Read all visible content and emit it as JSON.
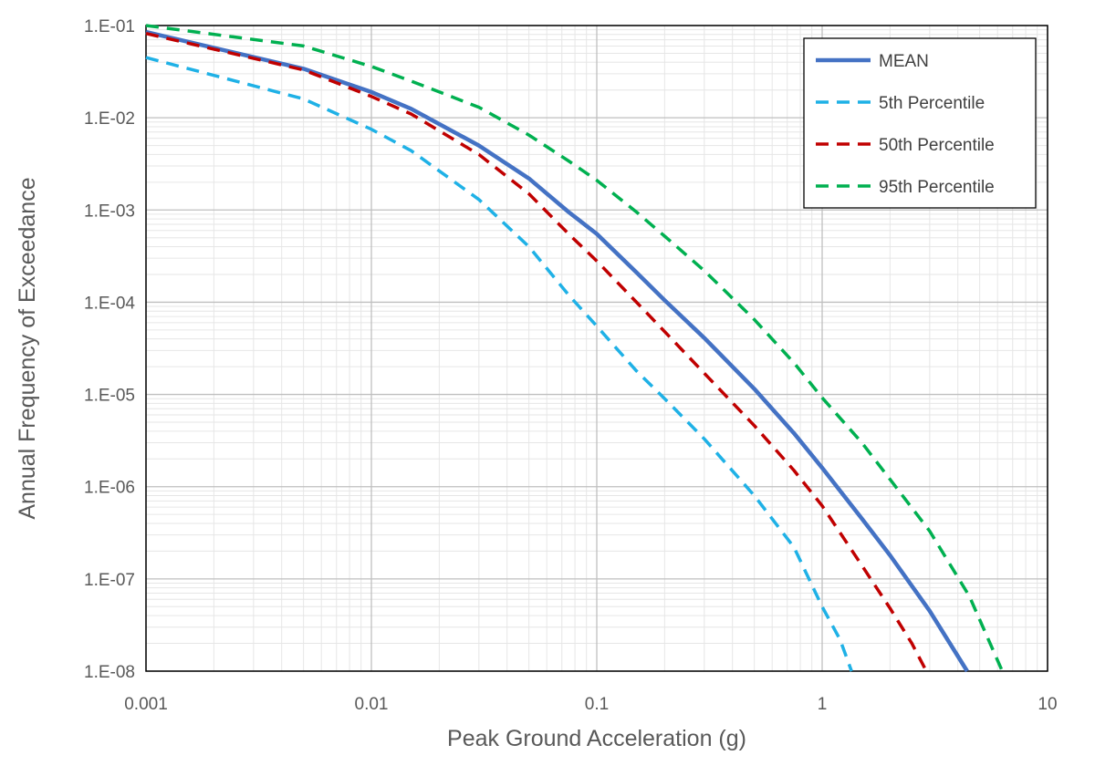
{
  "chart_data": {
    "type": "line",
    "title": "",
    "xlabel": "Peak Ground Acceleration (g)",
    "ylabel": "Annual Frequency of Exceedance",
    "xscale": "log",
    "yscale": "log",
    "xlim": [
      0.001,
      10
    ],
    "ylim": [
      1e-08,
      0.1
    ],
    "x_ticks": [
      {
        "value": 0.001,
        "label": "0.001"
      },
      {
        "value": 0.01,
        "label": "0.01"
      },
      {
        "value": 0.1,
        "label": "0.1"
      },
      {
        "value": 1,
        "label": "1"
      },
      {
        "value": 10,
        "label": "10"
      }
    ],
    "y_ticks": [
      {
        "value": 1e-08,
        "label": "1.E-08"
      },
      {
        "value": 1e-07,
        "label": "1.E-07"
      },
      {
        "value": 1e-06,
        "label": "1.E-06"
      },
      {
        "value": 1e-05,
        "label": "1.E-05"
      },
      {
        "value": 0.0001,
        "label": "1.E-04"
      },
      {
        "value": 0.001,
        "label": "1.E-03"
      },
      {
        "value": 0.01,
        "label": "1.E-02"
      },
      {
        "value": 0.1,
        "label": "1.E-01"
      }
    ],
    "grid": true,
    "minor_grid": true,
    "legend_position": "top-right",
    "series": [
      {
        "name": "MEAN",
        "color": "#4472C4",
        "style": "solid",
        "x": [
          0.001,
          0.005,
          0.01,
          0.015,
          0.03,
          0.05,
          0.075,
          0.1,
          0.15,
          0.2,
          0.3,
          0.5,
          0.75,
          1.0,
          1.5,
          2.0,
          3.0,
          4.4
        ],
        "y": [
          0.085,
          0.034,
          0.019,
          0.0125,
          0.005,
          0.0022,
          0.00095,
          0.00055,
          0.00021,
          0.000105,
          4.1e-05,
          1.15e-05,
          3.8e-06,
          1.6e-06,
          4.5e-07,
          1.8e-07,
          4.5e-08,
          1e-08
        ]
      },
      {
        "name": "5th Percentile",
        "color": "#1FB1E6",
        "style": "dashed",
        "x": [
          0.001,
          0.005,
          0.01,
          0.015,
          0.03,
          0.05,
          0.075,
          0.1,
          0.15,
          0.2,
          0.3,
          0.5,
          0.75,
          1.0,
          1.2,
          1.35
        ],
        "y": [
          0.045,
          0.016,
          0.0075,
          0.0044,
          0.0013,
          0.0004,
          0.00012,
          5.5e-05,
          1.8e-05,
          9e-06,
          3.3e-06,
          8e-07,
          2.2e-07,
          5e-08,
          2.2e-08,
          1e-08
        ]
      },
      {
        "name": "50th Percentile",
        "color": "#C00000",
        "style": "dashed",
        "x": [
          0.001,
          0.005,
          0.01,
          0.015,
          0.03,
          0.05,
          0.075,
          0.1,
          0.15,
          0.2,
          0.3,
          0.5,
          0.75,
          1.0,
          1.5,
          2.0,
          2.5,
          2.9
        ],
        "y": [
          0.082,
          0.033,
          0.017,
          0.011,
          0.004,
          0.0015,
          0.00055,
          0.00028,
          0.0001,
          4.8e-05,
          1.7e-05,
          4.6e-06,
          1.5e-06,
          6.2e-07,
          1.4e-07,
          4.8e-08,
          2e-08,
          1e-08
        ]
      },
      {
        "name": "95th Percentile",
        "color": "#00B050",
        "style": "dashed",
        "x": [
          0.001,
          0.005,
          0.01,
          0.015,
          0.03,
          0.05,
          0.075,
          0.1,
          0.15,
          0.2,
          0.3,
          0.5,
          0.75,
          1.0,
          1.5,
          2.0,
          3.0,
          4.5,
          6.3
        ],
        "y": [
          0.1,
          0.06,
          0.036,
          0.025,
          0.013,
          0.0065,
          0.0034,
          0.0021,
          0.00095,
          0.00052,
          0.00022,
          6.5e-05,
          2.2e-05,
          9.2e-06,
          3e-06,
          1.2e-06,
          3.3e-07,
          6.5e-08,
          1e-08
        ]
      }
    ]
  }
}
